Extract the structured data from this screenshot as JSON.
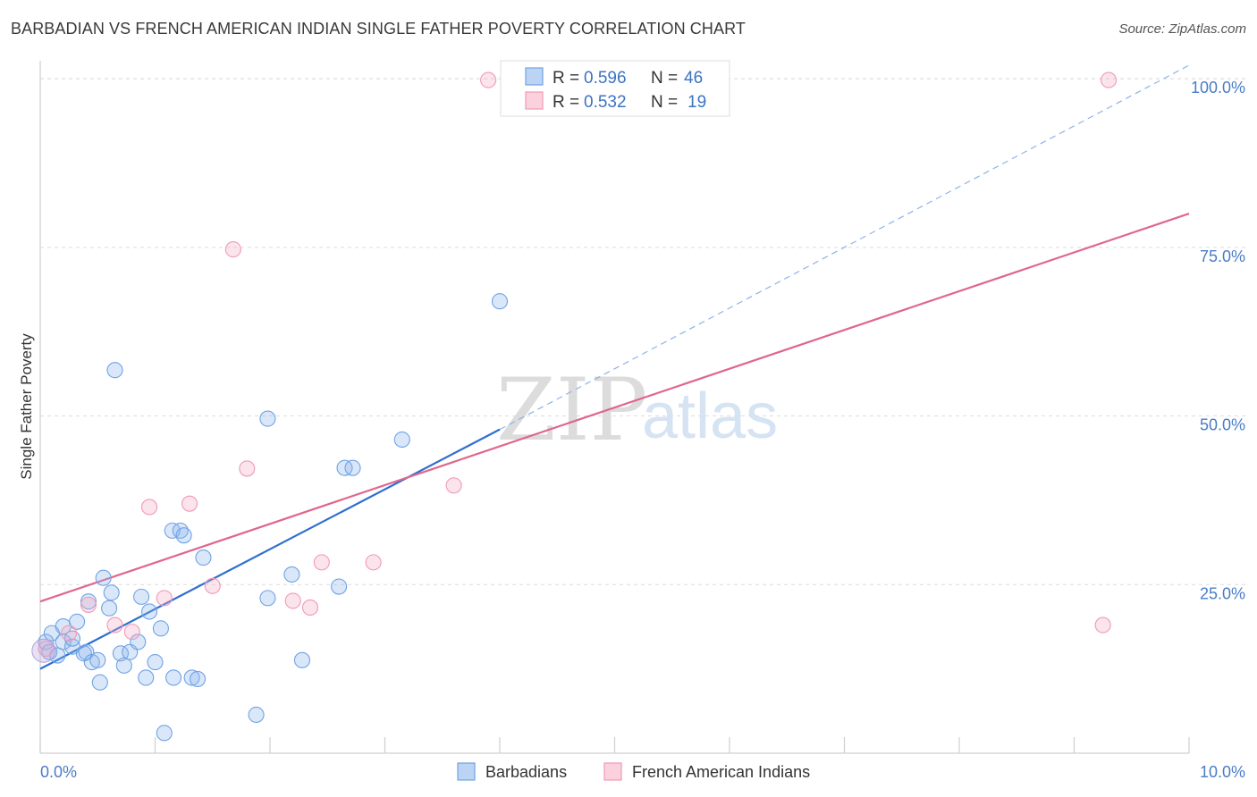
{
  "header": {
    "title": "BARBADIAN VS FRENCH AMERICAN INDIAN SINGLE FATHER POVERTY CORRELATION CHART",
    "source": "Source: ZipAtlas.com"
  },
  "watermark": {
    "zip": "ZIP",
    "atlas": "atlas"
  },
  "stats": {
    "blue": {
      "r_label": "R =",
      "r_value": "0.596",
      "n_label": "N =",
      "n_value": "46"
    },
    "pink": {
      "r_label": "R =",
      "r_value": "0.532",
      "n_label": "N =",
      "n_value": "19"
    }
  },
  "legend": {
    "blue": "Barbadians",
    "pink": "French American Indians"
  },
  "chart_data": {
    "type": "scatter",
    "title": "BARBADIAN VS FRENCH AMERICAN INDIAN SINGLE FATHER POVERTY CORRELATION CHART",
    "ylabel": "Single Father Poverty",
    "xlim": [
      0,
      10
    ],
    "ylim": [
      0,
      102
    ],
    "x_ticks": [
      "0.0%",
      "10.0%"
    ],
    "y_ticks": [
      {
        "value": 25,
        "label": "25.0%"
      },
      {
        "value": 50,
        "label": "50.0%"
      },
      {
        "value": 75,
        "label": "75.0%"
      },
      {
        "value": 100,
        "label": "100.0%"
      }
    ],
    "grid": true,
    "legend_position": "bottom",
    "colors": {
      "blue": "#6fa3e6",
      "blue_line": "#2f6fcf",
      "pink": "#f19ab4",
      "pink_line": "#e0668e"
    },
    "series": [
      {
        "name": "Barbadians",
        "color": "blue",
        "points": [
          [
            0.05,
            16.5
          ],
          [
            0.08,
            15
          ],
          [
            0.1,
            17.8
          ],
          [
            0.15,
            14.5
          ],
          [
            0.2,
            16.5
          ],
          [
            0.2,
            18.8
          ],
          [
            0.28,
            15.8
          ],
          [
            0.28,
            17
          ],
          [
            0.32,
            19.5
          ],
          [
            0.38,
            14.8
          ],
          [
            0.4,
            15
          ],
          [
            0.42,
            22.5
          ],
          [
            0.45,
            13.5
          ],
          [
            0.5,
            13.8
          ],
          [
            0.52,
            10.5
          ],
          [
            0.55,
            26
          ],
          [
            0.6,
            21.5
          ],
          [
            0.62,
            23.8
          ],
          [
            0.65,
            56.8
          ],
          [
            0.7,
            14.8
          ],
          [
            0.73,
            13
          ],
          [
            0.78,
            15
          ],
          [
            0.85,
            16.5
          ],
          [
            0.88,
            23.2
          ],
          [
            0.92,
            11.2
          ],
          [
            0.95,
            21
          ],
          [
            1.0,
            13.5
          ],
          [
            1.05,
            18.5
          ],
          [
            1.08,
            3
          ],
          [
            1.15,
            33
          ],
          [
            1.16,
            11.2
          ],
          [
            1.22,
            33
          ],
          [
            1.25,
            32.3
          ],
          [
            1.32,
            11.2
          ],
          [
            1.37,
            11
          ],
          [
            1.42,
            29
          ],
          [
            1.88,
            5.7
          ],
          [
            1.98,
            23
          ],
          [
            1.98,
            49.6
          ],
          [
            2.19,
            26.5
          ],
          [
            2.28,
            13.8
          ],
          [
            2.6,
            24.7
          ],
          [
            2.65,
            42.3
          ],
          [
            2.72,
            42.3
          ],
          [
            3.15,
            46.5
          ],
          [
            4.0,
            67
          ]
        ],
        "trend": {
          "x": [
            0,
            4.0
          ],
          "y": [
            12.5,
            48
          ],
          "extended": {
            "x": [
              4.0,
              10
            ],
            "y": [
              48,
              102
            ]
          }
        }
      },
      {
        "name": "French American Indians",
        "color": "pink",
        "points": [
          [
            0.05,
            15.5
          ],
          [
            0.25,
            17.8
          ],
          [
            0.42,
            22
          ],
          [
            0.65,
            19
          ],
          [
            0.8,
            18
          ],
          [
            0.95,
            36.5
          ],
          [
            1.08,
            23
          ],
          [
            1.3,
            37
          ],
          [
            1.5,
            24.8
          ],
          [
            1.68,
            74.7
          ],
          [
            1.8,
            42.2
          ],
          [
            2.2,
            22.6
          ],
          [
            2.35,
            21.6
          ],
          [
            2.45,
            28.3
          ],
          [
            2.9,
            28.3
          ],
          [
            3.6,
            39.7
          ],
          [
            3.9,
            99.8
          ],
          [
            9.25,
            19
          ],
          [
            9.3,
            99.8
          ]
        ],
        "trend": {
          "x": [
            0,
            10
          ],
          "y": [
            22.5,
            80
          ]
        }
      }
    ]
  }
}
